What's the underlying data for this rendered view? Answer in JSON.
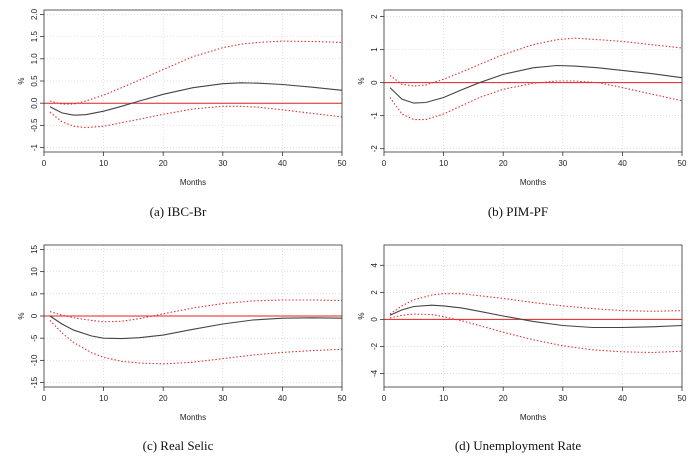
{
  "figure": {
    "panels": [
      {
        "caption": "(a) IBC-Br"
      },
      {
        "caption": "(b) PIM-PF"
      },
      {
        "caption": "(c) Real Selic"
      },
      {
        "caption": "(d) Unemployment Rate"
      }
    ]
  },
  "chart_data": [
    {
      "type": "line",
      "title": "(a) IBC-Br",
      "xlabel": "Months",
      "ylabel": "%",
      "xlim": [
        0,
        50
      ],
      "ylim": [
        -1.1,
        2.1
      ],
      "xticks": [
        0,
        10,
        20,
        30,
        40,
        50
      ],
      "yticks": [
        -1,
        -0.5,
        0,
        0.5,
        1,
        1.5,
        2
      ],
      "ytick_labels": [
        "-1",
        "-0.5",
        "0.0",
        "0.5",
        "1.0",
        "1.5",
        "2.0"
      ],
      "grid": true,
      "zero_line": 0,
      "x": [
        1,
        3,
        5,
        7,
        10,
        13,
        16,
        20,
        25,
        30,
        33,
        36,
        40,
        45,
        50
      ],
      "series": [
        {
          "name": "Response",
          "style": "solid",
          "color": "#444444",
          "values": [
            -0.08,
            -0.22,
            -0.27,
            -0.26,
            -0.18,
            -0.07,
            0.05,
            0.2,
            0.35,
            0.44,
            0.46,
            0.45,
            0.42,
            0.36,
            0.29
          ]
        },
        {
          "name": "Upper bound",
          "style": "dotted",
          "color": "#e03030",
          "values": [
            0.05,
            -0.02,
            -0.02,
            0.05,
            0.18,
            0.35,
            0.52,
            0.76,
            1.05,
            1.25,
            1.33,
            1.37,
            1.4,
            1.39,
            1.37
          ]
        },
        {
          "name": "Lower bound",
          "style": "dotted",
          "color": "#e03030",
          "values": [
            -0.2,
            -0.42,
            -0.52,
            -0.55,
            -0.52,
            -0.44,
            -0.36,
            -0.25,
            -0.13,
            -0.07,
            -0.07,
            -0.09,
            -0.15,
            -0.23,
            -0.31
          ]
        }
      ]
    },
    {
      "type": "line",
      "title": "(b) PIM-PF",
      "xlabel": "Months",
      "ylabel": "%",
      "xlim": [
        0,
        50
      ],
      "ylim": [
        -2.1,
        2.2
      ],
      "xticks": [
        0,
        10,
        20,
        30,
        40,
        50
      ],
      "yticks": [
        -2,
        -1,
        0,
        1,
        2
      ],
      "ytick_labels": [
        "-2",
        "-1",
        "0",
        "1",
        "2"
      ],
      "grid": true,
      "zero_line": 0,
      "x": [
        1,
        3,
        5,
        7,
        10,
        13,
        16,
        20,
        25,
        29,
        32,
        36,
        40,
        45,
        50
      ],
      "series": [
        {
          "name": "Response",
          "style": "solid",
          "color": "#444444",
          "values": [
            -0.15,
            -0.5,
            -0.62,
            -0.6,
            -0.45,
            -0.22,
            0.0,
            0.25,
            0.45,
            0.52,
            0.5,
            0.45,
            0.37,
            0.27,
            0.15
          ]
        },
        {
          "name": "Upper bound",
          "style": "dotted",
          "color": "#e03030",
          "values": [
            0.22,
            -0.05,
            -0.1,
            -0.07,
            0.1,
            0.32,
            0.55,
            0.85,
            1.15,
            1.3,
            1.35,
            1.3,
            1.25,
            1.15,
            1.05
          ]
        },
        {
          "name": "Lower bound",
          "style": "dotted",
          "color": "#e03030",
          "values": [
            -0.45,
            -0.95,
            -1.12,
            -1.12,
            -0.95,
            -0.7,
            -0.45,
            -0.2,
            -0.02,
            0.05,
            0.05,
            0.0,
            -0.15,
            -0.35,
            -0.55
          ]
        }
      ]
    },
    {
      "type": "line",
      "title": "(c) Real Selic",
      "xlabel": "Months",
      "ylabel": "%",
      "xlim": [
        0,
        50
      ],
      "ylim": [
        -16,
        16
      ],
      "xticks": [
        0,
        10,
        20,
        30,
        40,
        50
      ],
      "yticks": [
        -15,
        -10,
        -5,
        0,
        5,
        10,
        15
      ],
      "ytick_labels": [
        "-15",
        "-10",
        "-5",
        "0",
        "5",
        "10",
        "15"
      ],
      "grid": true,
      "zero_line": 0,
      "x": [
        1,
        3,
        5,
        8,
        10,
        13,
        16,
        20,
        25,
        30,
        35,
        40,
        45,
        50
      ],
      "series": [
        {
          "name": "Response",
          "style": "solid",
          "color": "#444444",
          "values": [
            0.0,
            -1.8,
            -3.2,
            -4.5,
            -5.0,
            -5.1,
            -4.9,
            -4.3,
            -3.0,
            -1.8,
            -0.9,
            -0.5,
            -0.4,
            -0.5
          ]
        },
        {
          "name": "Upper bound",
          "style": "dotted",
          "color": "#e03030",
          "values": [
            1.0,
            0.2,
            -0.4,
            -1.0,
            -1.3,
            -1.2,
            -0.6,
            0.5,
            1.8,
            2.8,
            3.4,
            3.6,
            3.6,
            3.5
          ]
        },
        {
          "name": "Lower bound",
          "style": "dotted",
          "color": "#e03030",
          "values": [
            -1.0,
            -3.8,
            -6.0,
            -8.3,
            -9.3,
            -10.2,
            -10.6,
            -10.8,
            -10.4,
            -9.6,
            -8.8,
            -8.2,
            -7.8,
            -7.5
          ]
        }
      ]
    },
    {
      "type": "line",
      "title": "(d) Unemployment Rate",
      "xlabel": "Months",
      "ylabel": "%",
      "xlim": [
        0,
        50
      ],
      "ylim": [
        -5,
        5.5
      ],
      "xticks": [
        0,
        10,
        20,
        30,
        40,
        50
      ],
      "yticks": [
        -4,
        -2,
        0,
        2,
        4
      ],
      "ytick_labels": [
        "-4",
        "-2",
        "0",
        "2",
        "4"
      ],
      "grid": true,
      "zero_line": 0,
      "x": [
        1,
        3,
        5,
        8,
        10,
        13,
        16,
        20,
        25,
        30,
        35,
        40,
        45,
        50
      ],
      "series": [
        {
          "name": "Response",
          "style": "solid",
          "color": "#444444",
          "values": [
            0.3,
            0.7,
            0.95,
            1.05,
            1.0,
            0.85,
            0.6,
            0.25,
            -0.15,
            -0.45,
            -0.6,
            -0.6,
            -0.55,
            -0.45
          ]
        },
        {
          "name": "Upper bound",
          "style": "dotted",
          "color": "#e03030",
          "values": [
            0.4,
            1.0,
            1.45,
            1.8,
            1.9,
            1.9,
            1.75,
            1.55,
            1.25,
            1.0,
            0.8,
            0.65,
            0.6,
            0.65
          ]
        },
        {
          "name": "Lower bound",
          "style": "dotted",
          "color": "#e03030",
          "values": [
            0.1,
            0.3,
            0.4,
            0.35,
            0.2,
            -0.1,
            -0.45,
            -0.95,
            -1.5,
            -1.95,
            -2.25,
            -2.4,
            -2.45,
            -2.35
          ]
        }
      ]
    }
  ]
}
